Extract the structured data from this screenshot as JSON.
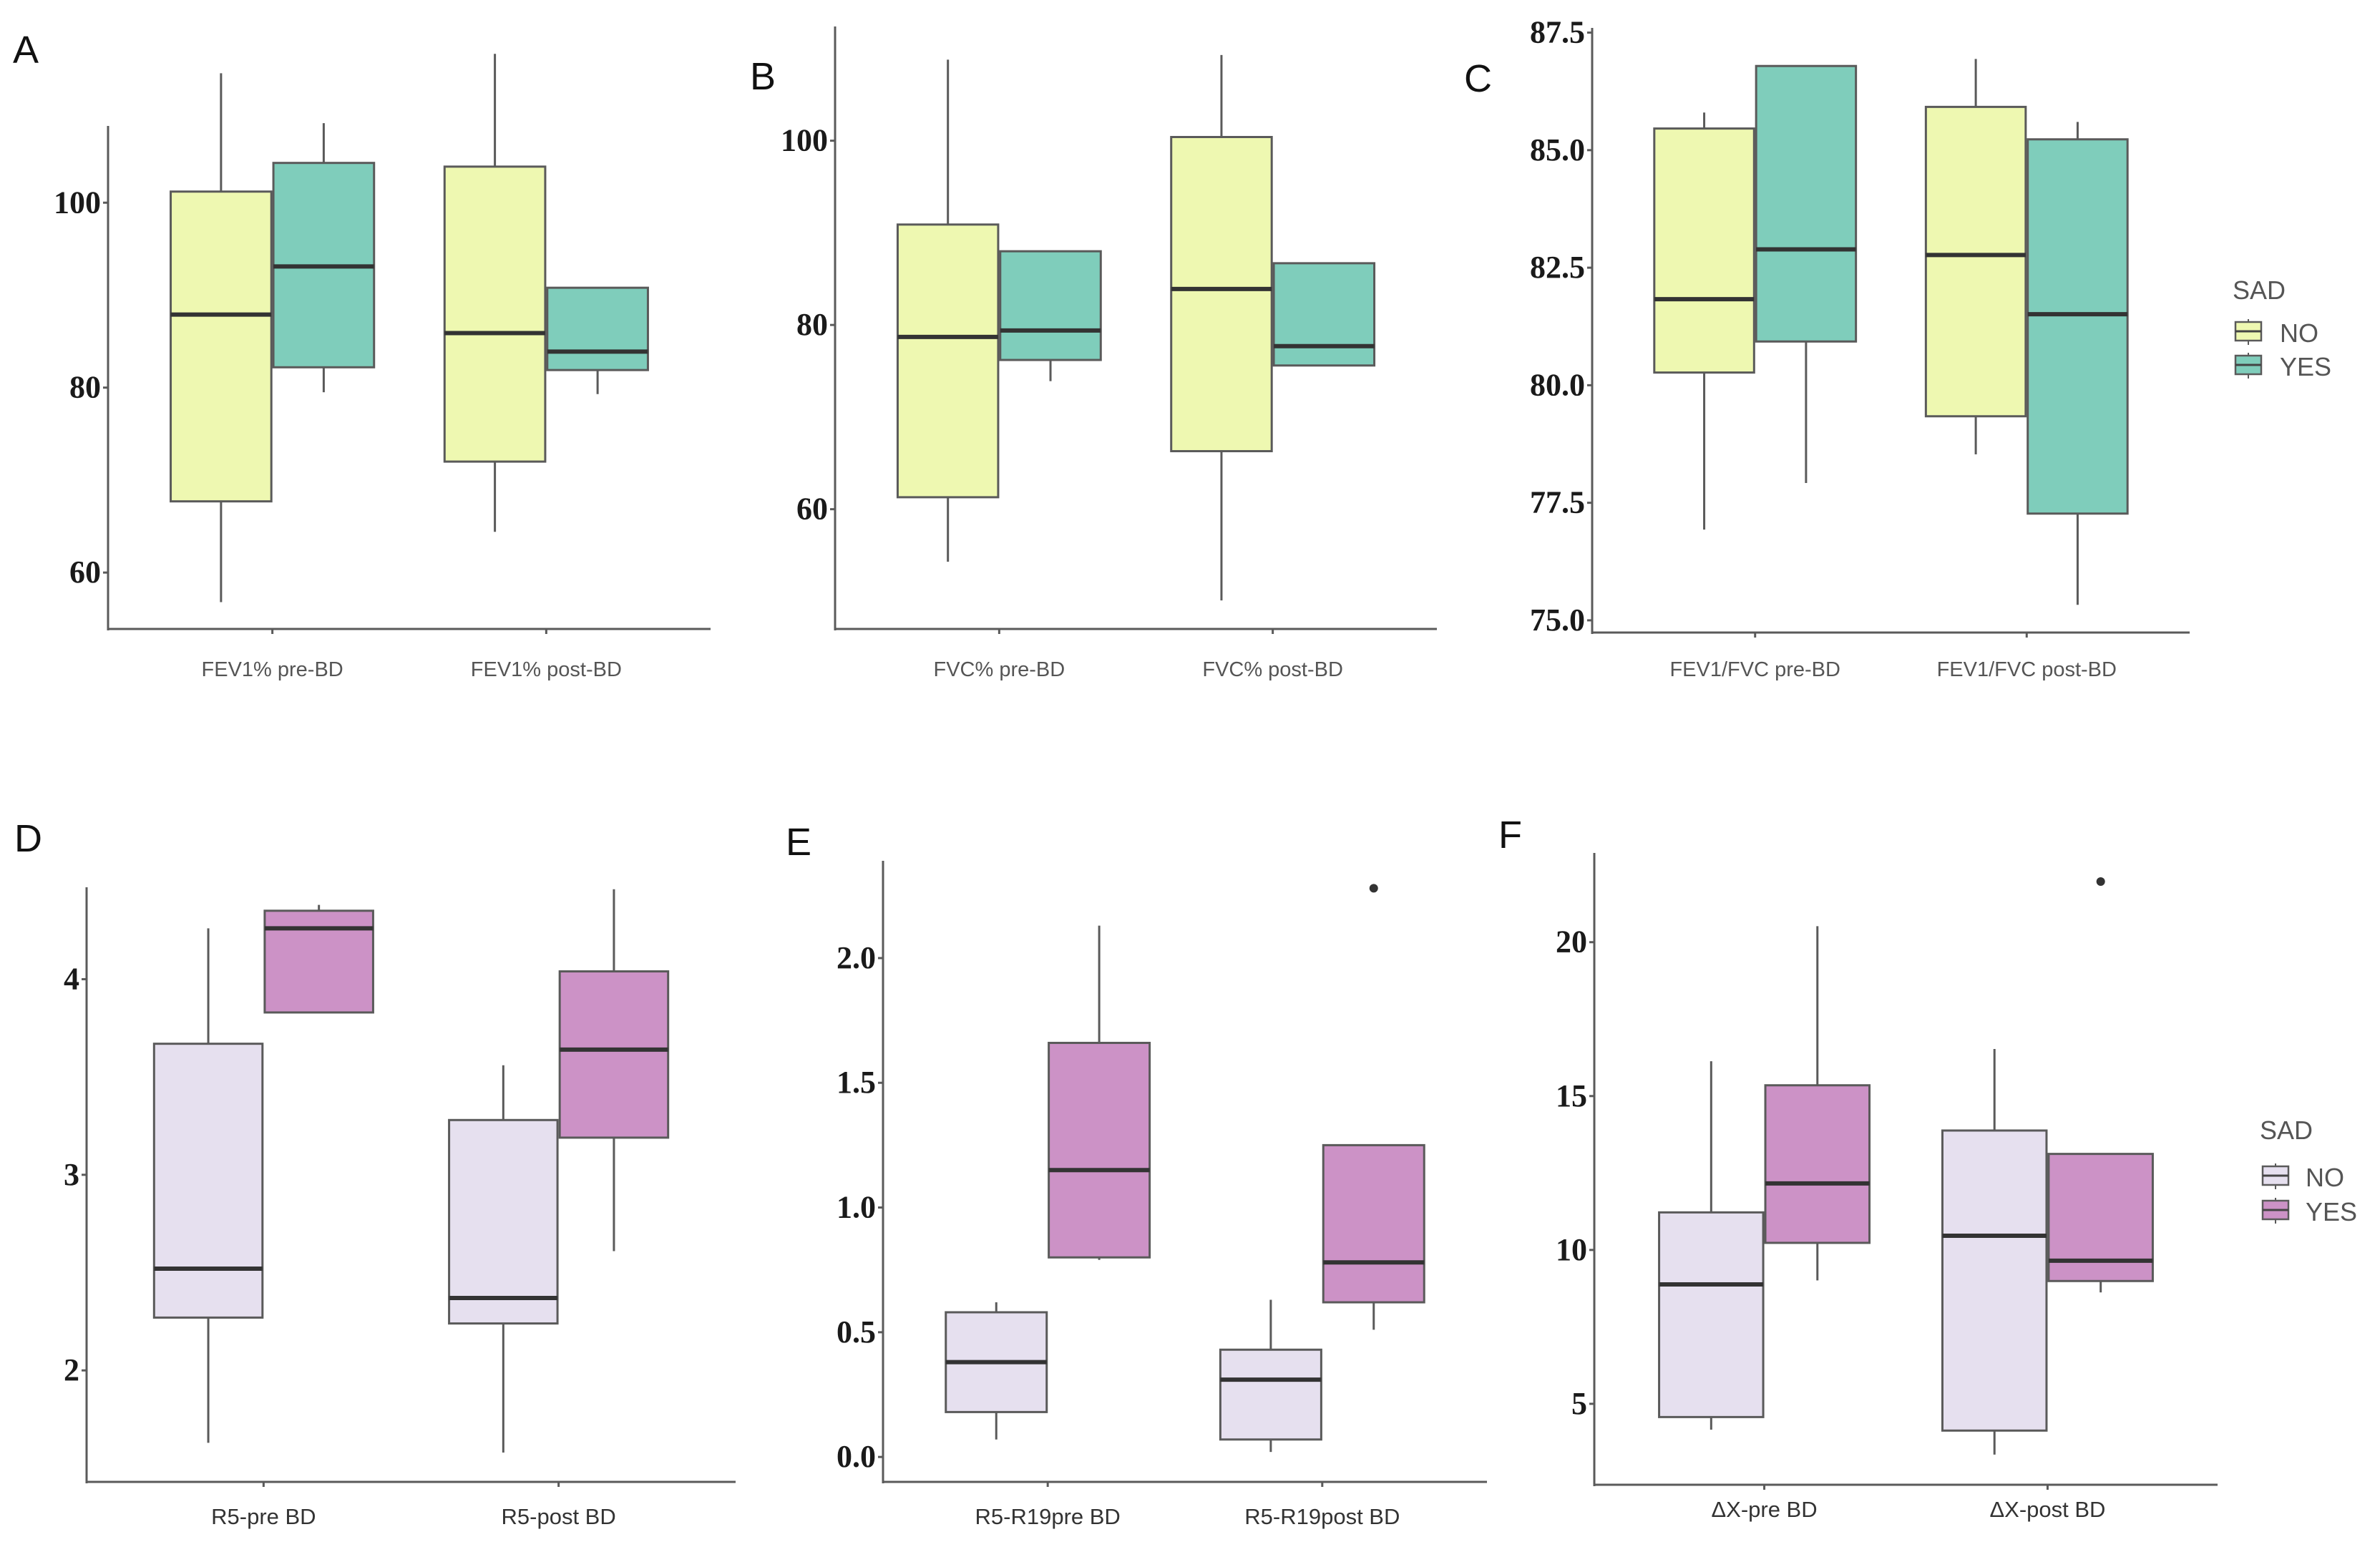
{
  "chart_data": [
    {
      "type": "box",
      "panel": "A",
      "categories": [
        "FEV1% pre-BD",
        "FEV1% post-BD"
      ],
      "yticks": [
        60,
        80,
        100
      ],
      "ytick_labels": [
        "60",
        "80",
        "100"
      ],
      "ylim": [
        53.9,
        108.3
      ],
      "series": [
        {
          "name": "NO",
          "color": "#EEF8B1",
          "boxes": [
            {
              "min": 56.8,
              "q1": 67.7,
              "median": 87.9,
              "q3": 101.2,
              "max": 114.0,
              "outliers": []
            },
            {
              "min": 64.4,
              "q1": 72.0,
              "median": 85.9,
              "q3": 103.9,
              "max": 116.1,
              "outliers": []
            }
          ]
        },
        {
          "name": "YES",
          "color": "#7FCDBB",
          "boxes": [
            {
              "min": 79.5,
              "q1": 82.2,
              "median": 93.1,
              "q3": 104.3,
              "max": 108.6,
              "outliers": []
            },
            {
              "min": 79.3,
              "q1": 81.9,
              "median": 83.9,
              "q3": 90.8,
              "max": 90.8,
              "outliers": []
            }
          ]
        }
      ]
    },
    {
      "type": "box",
      "panel": "B",
      "categories": [
        "FVC% pre-BD",
        "FVC% post-BD"
      ],
      "yticks": [
        60,
        80,
        100
      ],
      "ytick_labels": [
        "60",
        "80",
        "100"
      ],
      "ylim": [
        47.0,
        112.4
      ],
      "series": [
        {
          "name": "NO",
          "color": "#EEF8B1",
          "boxes": [
            {
              "min": 54.3,
              "q1": 61.3,
              "median": 78.7,
              "q3": 90.9,
              "max": 108.8,
              "outliers": []
            },
            {
              "min": 50.1,
              "q1": 66.3,
              "median": 83.9,
              "q3": 100.4,
              "max": 109.3,
              "outliers": []
            }
          ]
        },
        {
          "name": "YES",
          "color": "#7FCDBB",
          "boxes": [
            {
              "min": 73.9,
              "q1": 76.2,
              "median": 79.4,
              "q3": 88.0,
              "max": 88.0,
              "outliers": []
            },
            {
              "min": 75.6,
              "q1": 75.6,
              "median": 77.7,
              "q3": 86.7,
              "max": 86.7,
              "outliers": []
            }
          ]
        }
      ]
    },
    {
      "type": "box",
      "panel": "C",
      "categories": [
        "FEV1/FVC pre-BD",
        "FEV1/FVC post-BD"
      ],
      "yticks": [
        75,
        77.5,
        80,
        82.5,
        85,
        87.5
      ],
      "ytick_labels": [
        "75.0",
        "77.5",
        "80.0",
        "82.5",
        "85.0",
        "87.5"
      ],
      "ylim": [
        74.74,
        87.6
      ],
      "series": [
        {
          "name": "NO",
          "color": "#EEF8B1",
          "boxes": [
            {
              "min": 76.93,
              "q1": 80.27,
              "median": 81.83,
              "q3": 85.46,
              "max": 85.8,
              "outliers": []
            },
            {
              "min": 78.53,
              "q1": 79.34,
              "median": 82.77,
              "q3": 85.92,
              "max": 86.94,
              "outliers": []
            }
          ]
        },
        {
          "name": "YES",
          "color": "#7FCDBB",
          "boxes": [
            {
              "min": 77.92,
              "q1": 80.93,
              "median": 82.89,
              "q3": 86.79,
              "max": 86.79,
              "outliers": []
            },
            {
              "min": 75.33,
              "q1": 77.27,
              "median": 81.51,
              "q3": 85.23,
              "max": 85.6,
              "outliers": []
            }
          ]
        }
      ],
      "legend": {
        "title": "SAD",
        "entries": [
          "NO",
          "YES"
        ],
        "position": "right"
      }
    },
    {
      "type": "box",
      "panel": "D",
      "categories": [
        "R5-pre BD",
        "R5-post BD"
      ],
      "yticks": [
        2,
        3,
        4
      ],
      "ytick_labels": [
        "2",
        "3",
        "4"
      ],
      "ylim": [
        1.43,
        4.47
      ],
      "series": [
        {
          "name": "NO",
          "color": "#E6E0EF",
          "boxes": [
            {
              "min": 1.63,
              "q1": 2.27,
              "median": 2.52,
              "q3": 3.67,
              "max": 4.26,
              "outliers": []
            },
            {
              "min": 1.58,
              "q1": 2.24,
              "median": 2.37,
              "q3": 3.28,
              "max": 3.56,
              "outliers": []
            }
          ]
        },
        {
          "name": "YES",
          "color": "#CC92C6",
          "boxes": [
            {
              "min": 3.83,
              "q1": 3.83,
              "median": 4.26,
              "q3": 4.35,
              "max": 4.38,
              "outliers": []
            },
            {
              "min": 2.61,
              "q1": 3.19,
              "median": 3.64,
              "q3": 4.04,
              "max": 4.46,
              "outliers": []
            }
          ]
        }
      ]
    },
    {
      "type": "box",
      "panel": "E",
      "categories": [
        "R5-R19pre BD",
        "R5-R19post BD"
      ],
      "yticks": [
        0,
        0.5,
        1,
        1.5,
        2
      ],
      "ytick_labels": [
        "0.0",
        "0.5",
        "1.0",
        "1.5",
        "2.0"
      ],
      "ylim": [
        -0.1,
        2.39
      ],
      "series": [
        {
          "name": "NO",
          "color": "#E6E0EF",
          "boxes": [
            {
              "min": 0.07,
              "q1": 0.18,
              "median": 0.38,
              "q3": 0.58,
              "max": 0.62,
              "outliers": []
            },
            {
              "min": 0.02,
              "q1": 0.07,
              "median": 0.31,
              "q3": 0.43,
              "max": 0.63,
              "outliers": []
            }
          ]
        },
        {
          "name": "YES",
          "color": "#CC92C6",
          "boxes": [
            {
              "min": 0.79,
              "q1": 0.8,
              "median": 1.15,
              "q3": 1.66,
              "max": 2.13,
              "outliers": []
            },
            {
              "min": 0.51,
              "q1": 0.62,
              "median": 0.78,
              "q3": 1.25,
              "max": 1.25,
              "outliers": [
                2.28
              ]
            }
          ]
        }
      ]
    },
    {
      "type": "box",
      "panel": "F",
      "categories": [
        "ΔX-pre BD",
        "ΔX-post BD"
      ],
      "yticks": [
        5,
        10,
        15,
        20
      ],
      "ytick_labels": [
        "5",
        "10",
        "15",
        "20"
      ],
      "ylim": [
        2.37,
        22.9
      ],
      "series": [
        {
          "name": "NO",
          "color": "#E6E0EF",
          "boxes": [
            {
              "min": 4.16,
              "q1": 4.57,
              "median": 8.88,
              "q3": 11.22,
              "max": 16.13,
              "outliers": []
            },
            {
              "min": 3.35,
              "q1": 4.13,
              "median": 10.46,
              "q3": 13.88,
              "max": 16.53,
              "outliers": []
            }
          ]
        },
        {
          "name": "YES",
          "color": "#CC92C6",
          "boxes": [
            {
              "min": 9.01,
              "q1": 10.23,
              "median": 12.16,
              "q3": 15.35,
              "max": 20.52,
              "outliers": []
            },
            {
              "min": 8.62,
              "q1": 8.99,
              "median": 9.65,
              "q3": 13.12,
              "max": 13.12,
              "outliers": [
                21.97
              ]
            }
          ]
        }
      ],
      "legend": {
        "title": "SAD",
        "entries": [
          "NO",
          "YES"
        ],
        "position": "right"
      }
    }
  ]
}
